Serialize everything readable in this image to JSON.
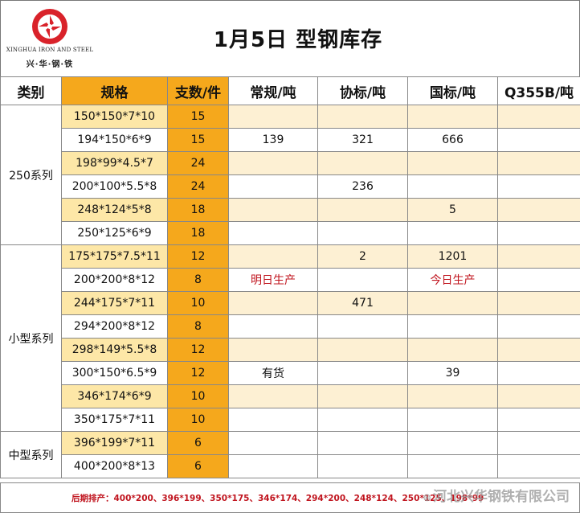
{
  "logo": {
    "english": "XINGHUA IRON AND STEEL",
    "chinese": "兴·华·钢·铁"
  },
  "title": "1月5日 型钢库存",
  "headers": [
    "类别",
    "规格",
    "支数/件",
    "常规/吨",
    "协标/吨",
    "国标/吨",
    "Q355B/吨"
  ],
  "categories": [
    "250系列",
    "小型系列",
    "中型系列"
  ],
  "rows": [
    {
      "spec": "150*150*7*10",
      "qty": "15",
      "regular": "",
      "assoc": "",
      "national": "",
      "q355b": ""
    },
    {
      "spec": "194*150*6*9",
      "qty": "15",
      "regular": "139",
      "assoc": "321",
      "national": "666",
      "q355b": ""
    },
    {
      "spec": "198*99*4.5*7",
      "qty": "24",
      "regular": "",
      "assoc": "",
      "national": "",
      "q355b": ""
    },
    {
      "spec": "200*100*5.5*8",
      "qty": "24",
      "regular": "",
      "assoc": "236",
      "national": "",
      "q355b": ""
    },
    {
      "spec": "248*124*5*8",
      "qty": "18",
      "regular": "",
      "assoc": "",
      "national": "5",
      "q355b": ""
    },
    {
      "spec": "250*125*6*9",
      "qty": "18",
      "regular": "",
      "assoc": "",
      "national": "",
      "q355b": ""
    },
    {
      "spec": "175*175*7.5*11",
      "qty": "12",
      "regular": "",
      "assoc": "2",
      "national": "1201",
      "q355b": ""
    },
    {
      "spec": "200*200*8*12",
      "qty": "8",
      "regular": "明日生产",
      "assoc": "",
      "national": "今日生产",
      "q355b": ""
    },
    {
      "spec": "244*175*7*11",
      "qty": "10",
      "regular": "",
      "assoc": "471",
      "national": "",
      "q355b": ""
    },
    {
      "spec": "294*200*8*12",
      "qty": "8",
      "regular": "",
      "assoc": "",
      "national": "",
      "q355b": ""
    },
    {
      "spec": "298*149*5.5*8",
      "qty": "12",
      "regular": "",
      "assoc": "",
      "national": "",
      "q355b": ""
    },
    {
      "spec": "300*150*6.5*9",
      "qty": "12",
      "regular": "有货",
      "assoc": "",
      "national": "39",
      "q355b": ""
    },
    {
      "spec": "346*174*6*9",
      "qty": "10",
      "regular": "",
      "assoc": "",
      "national": "",
      "q355b": ""
    },
    {
      "spec": "350*175*7*11",
      "qty": "10",
      "regular": "",
      "assoc": "",
      "national": "",
      "q355b": ""
    },
    {
      "spec": "396*199*7*11",
      "qty": "6",
      "regular": "",
      "assoc": "",
      "national": "",
      "q355b": ""
    },
    {
      "spec": "400*200*8*13",
      "qty": "6",
      "regular": "",
      "assoc": "",
      "national": "",
      "q355b": ""
    }
  ],
  "footer": {
    "schedule": "后期排产：400*200、396*199、350*175、346*174、294*200、248*124、250*125、198*99",
    "watermark": "河北兴华钢铁有限公司"
  },
  "colors": {
    "orange": "#f5a81c",
    "light_yellow": "#fde7a7",
    "pale_row": "#fdf0d3",
    "red_text": "#c0141e",
    "logo_red": "#d9222a"
  }
}
